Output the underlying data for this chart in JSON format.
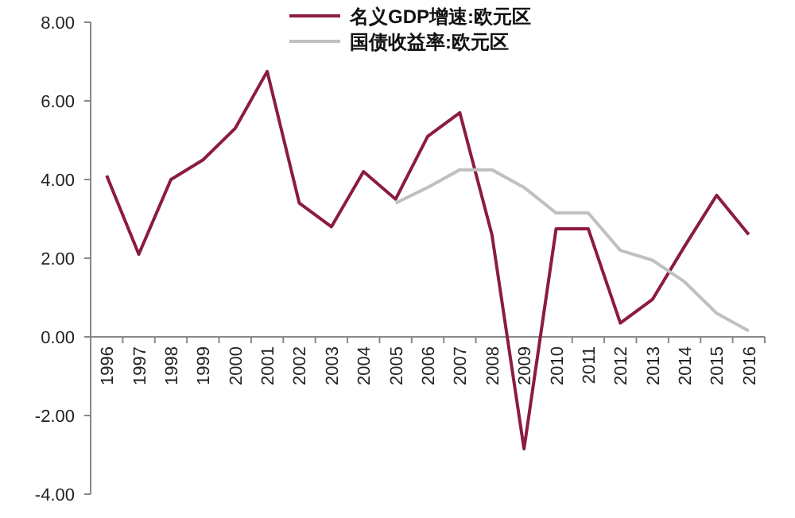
{
  "chart_data": {
    "type": "line",
    "categories": [
      "1996",
      "1997",
      "1998",
      "1999",
      "2000",
      "2001",
      "2002",
      "2003",
      "2004",
      "2005",
      "2006",
      "2007",
      "2008",
      "2009",
      "2010",
      "2011",
      "2012",
      "2013",
      "2014",
      "2015",
      "2016"
    ],
    "series": [
      {
        "name": "名义GDP增速:欧元区",
        "color": "#8c1c3f",
        "values": [
          4.1,
          2.1,
          4.0,
          4.5,
          5.3,
          6.75,
          3.4,
          2.8,
          4.2,
          3.5,
          5.1,
          5.7,
          2.6,
          -2.85,
          2.75,
          2.75,
          0.35,
          0.95,
          2.3,
          3.6,
          2.6
        ]
      },
      {
        "name": "国债收益率:欧元区",
        "color": "#c0c0c0",
        "values": [
          null,
          null,
          null,
          null,
          null,
          null,
          null,
          null,
          null,
          3.4,
          3.8,
          4.25,
          4.25,
          3.8,
          3.15,
          3.15,
          2.2,
          1.95,
          1.4,
          0.6,
          0.15
        ]
      }
    ],
    "ylim": [
      -4,
      8
    ],
    "yticks": [
      {
        "value": -4,
        "label": "-4.00"
      },
      {
        "value": -2,
        "label": "-2.00"
      },
      {
        "value": 0,
        "label": "0.00"
      },
      {
        "value": 2,
        "label": "2.00"
      },
      {
        "value": 4,
        "label": "4.00"
      },
      {
        "value": 6,
        "label": "6.00"
      },
      {
        "value": 8,
        "label": "8.00"
      }
    ],
    "legend": "top"
  }
}
